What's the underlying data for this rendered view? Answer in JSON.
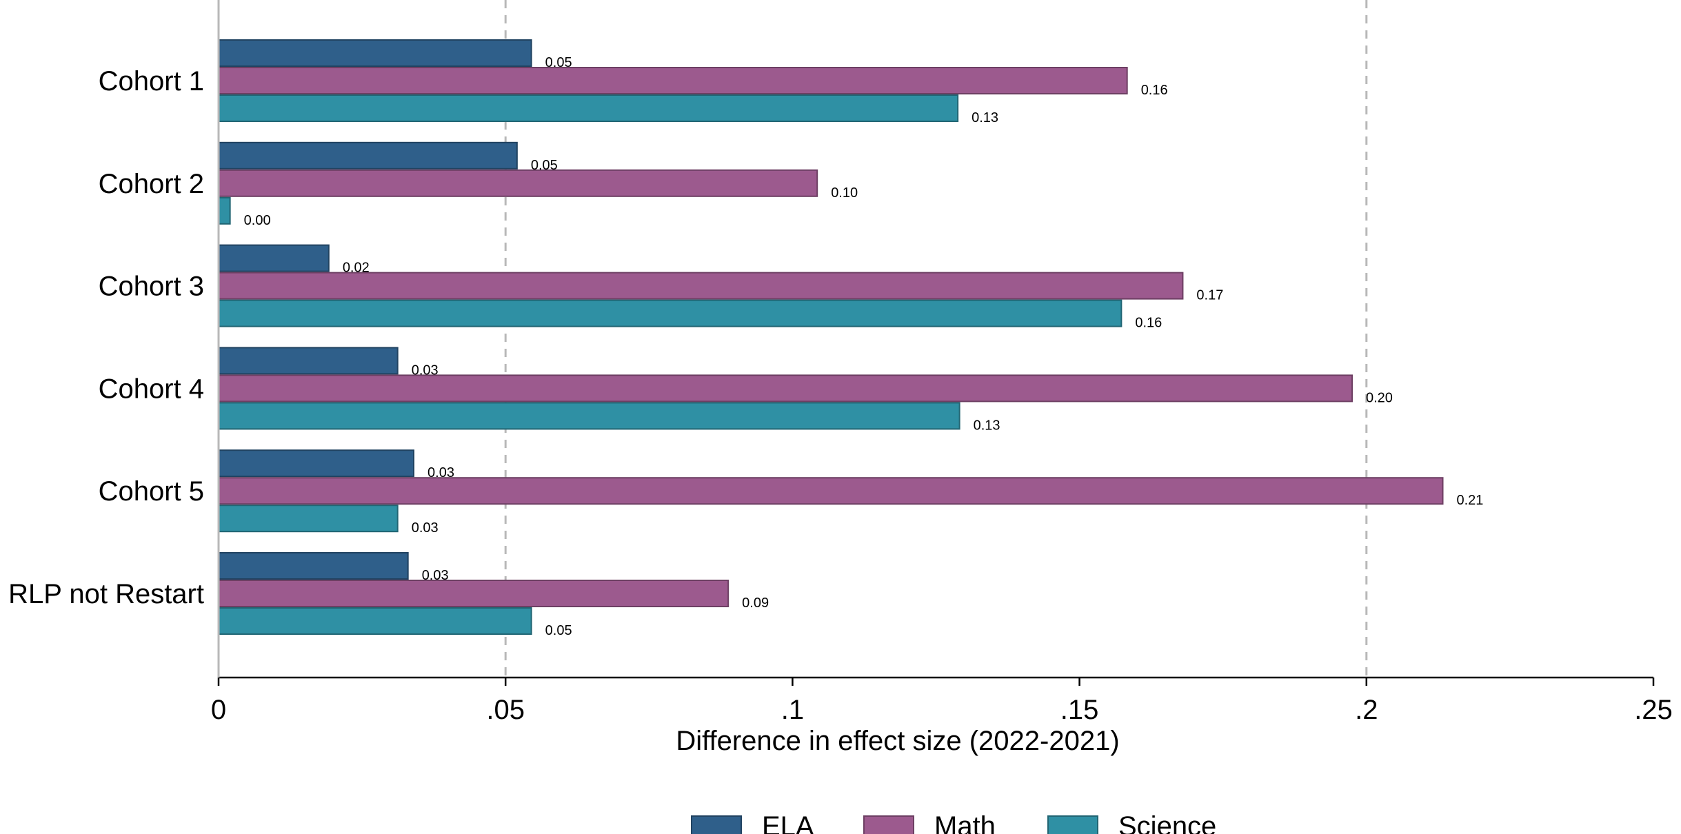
{
  "chart_data": {
    "type": "bar",
    "orientation": "horizontal",
    "categories": [
      "Cohort 1",
      "Cohort 2",
      "Cohort 3",
      "Cohort 4",
      "Cohort 5",
      "RLP not Restart"
    ],
    "series": [
      {
        "name": "ELA",
        "color": "#2f5f8a",
        "values": [
          0.0545,
          0.052,
          0.0192,
          0.0312,
          0.034,
          0.033
        ],
        "labels": [
          "0.05",
          "0.05",
          "0.02",
          "0.03",
          "0.03",
          "0.03"
        ]
      },
      {
        "name": "Math",
        "color": "#9c5a8e",
        "values": [
          0.1583,
          0.1043,
          0.168,
          0.1975,
          0.2133,
          0.0888
        ],
        "labels": [
          "0.16",
          "0.10",
          "0.17",
          "0.20",
          "0.21",
          "0.09"
        ]
      },
      {
        "name": "Science",
        "color": "#2f90a4",
        "values": [
          0.1288,
          0.002,
          0.1573,
          0.1291,
          0.0312,
          0.0545
        ],
        "labels": [
          "0.13",
          "0.00",
          "0.16",
          "0.13",
          "0.03",
          "0.05"
        ]
      }
    ],
    "xlim": [
      0,
      0.25
    ],
    "xticks": [
      0,
      0.05,
      0.1,
      0.15,
      0.2,
      0.25
    ],
    "xtick_labels": [
      "0",
      ".05",
      ".1",
      ".15",
      ".2",
      ".25"
    ],
    "xlabel": "Difference in effect size (2022-2021)",
    "ylabel": "",
    "title": "",
    "grid": "vertical dashed lines at 0, .05, .2",
    "grid_lines_at": [
      0,
      0.05,
      0.2
    ],
    "legend_position": "bottom-center"
  }
}
